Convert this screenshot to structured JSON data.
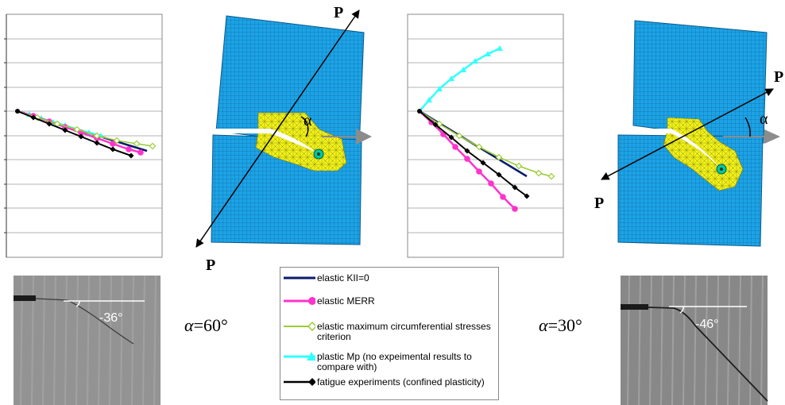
{
  "load_label": "P",
  "angle_symbol": "α",
  "degree_sign": "°",
  "alpha_symbol": "α",
  "eq_sign": "=",
  "panels": [
    {
      "alpha_value": "60",
      "measured_angle": "-36°"
    },
    {
      "alpha_value": "30",
      "measured_angle": "-46°"
    }
  ],
  "legend": {
    "items": [
      {
        "label": "elastic KII=0",
        "color": "#0a1a6b",
        "marker": "none"
      },
      {
        "label": "elastic MERR",
        "color": "#ff33cc",
        "marker": "circle"
      },
      {
        "label": "elastic maximum circumferential stresses criterion",
        "color": "#99cc33",
        "marker": "open-diamond"
      },
      {
        "label": "plastic Mp (no expeimental results to compare with)",
        "color": "#33ffff",
        "marker": "triangle"
      },
      {
        "label": "fatigue experiments (confined plasticity)",
        "color": "#000000",
        "marker": "diamond"
      }
    ]
  },
  "colors": {
    "mesh_fill": "#1ca3e6",
    "mesh_line": "#0b5a8a",
    "refined_fill": "#f2f21a",
    "arrow_gray": "#8c8c8c"
  },
  "chart_data": [
    {
      "type": "line",
      "title": "",
      "xlabel": "",
      "ylabel": "",
      "grid": true,
      "series": [
        {
          "name": "elastic KII=0",
          "values": [
            [
              0,
              0
            ],
            [
              163,
              -50
            ]
          ]
        },
        {
          "name": "elastic MERR",
          "values": [
            [
              0,
              0
            ],
            [
              20,
              -6
            ],
            [
              40,
              -13
            ],
            [
              60,
              -20
            ],
            [
              80,
              -27
            ],
            [
              100,
              -34
            ],
            [
              120,
              -41
            ],
            [
              140,
              -48
            ],
            [
              155,
              -52
            ]
          ]
        },
        {
          "name": "elastic maximum circumferential stresses criterion",
          "values": [
            [
              0,
              0
            ],
            [
              25,
              -8
            ],
            [
              50,
              -16
            ],
            [
              75,
              -23
            ],
            [
              100,
              -31
            ],
            [
              125,
              -37
            ],
            [
              150,
              -41
            ],
            [
              170,
              -44
            ]
          ]
        },
        {
          "name": "plastic Mp",
          "values": [
            [
              0,
              0
            ],
            [
              15,
              -4
            ],
            [
              30,
              -9
            ],
            [
              45,
              -14
            ],
            [
              60,
              -18
            ],
            [
              75,
              -23
            ],
            [
              90,
              -27
            ],
            [
              105,
              -31
            ]
          ]
        },
        {
          "name": "fatigue experiments",
          "values": [
            [
              0,
              0
            ],
            [
              20,
              -8
            ],
            [
              40,
              -16
            ],
            [
              60,
              -24
            ],
            [
              80,
              -32
            ],
            [
              100,
              -40
            ],
            [
              120,
              -48
            ],
            [
              143,
              -56
            ]
          ]
        }
      ]
    },
    {
      "type": "line",
      "title": "",
      "xlabel": "",
      "ylabel": "",
      "grid": true,
      "series": [
        {
          "name": "elastic KII=0",
          "values": [
            [
              0,
              0
            ],
            [
              135,
              -82
            ]
          ]
        },
        {
          "name": "elastic MERR",
          "values": [
            [
              0,
              0
            ],
            [
              15,
              -14
            ],
            [
              30,
              -29
            ],
            [
              45,
              -45
            ],
            [
              60,
              -60
            ],
            [
              75,
              -76
            ],
            [
              90,
              -91
            ],
            [
              105,
              -108
            ],
            [
              120,
              -123
            ]
          ]
        },
        {
          "name": "elastic maximum circumferential stresses criterion",
          "values": [
            [
              0,
              0
            ],
            [
              25,
              -16
            ],
            [
              50,
              -31
            ],
            [
              75,
              -45
            ],
            [
              100,
              -58
            ],
            [
              125,
              -69
            ],
            [
              150,
              -78
            ],
            [
              166,
              -82
            ]
          ]
        },
        {
          "name": "plastic Mp",
          "values": [
            [
              0,
              0
            ],
            [
              12,
              14
            ],
            [
              25,
              28
            ],
            [
              40,
              41
            ],
            [
              55,
              52
            ],
            [
              70,
              63
            ],
            [
              86,
              72
            ],
            [
              101,
              79
            ]
          ]
        },
        {
          "name": "fatigue experiments",
          "values": [
            [
              0,
              0
            ],
            [
              20,
              -17
            ],
            [
              40,
              -33
            ],
            [
              60,
              -50
            ],
            [
              80,
              -65
            ],
            [
              100,
              -80
            ],
            [
              120,
              -96
            ],
            [
              135,
              -107
            ]
          ]
        }
      ]
    }
  ]
}
